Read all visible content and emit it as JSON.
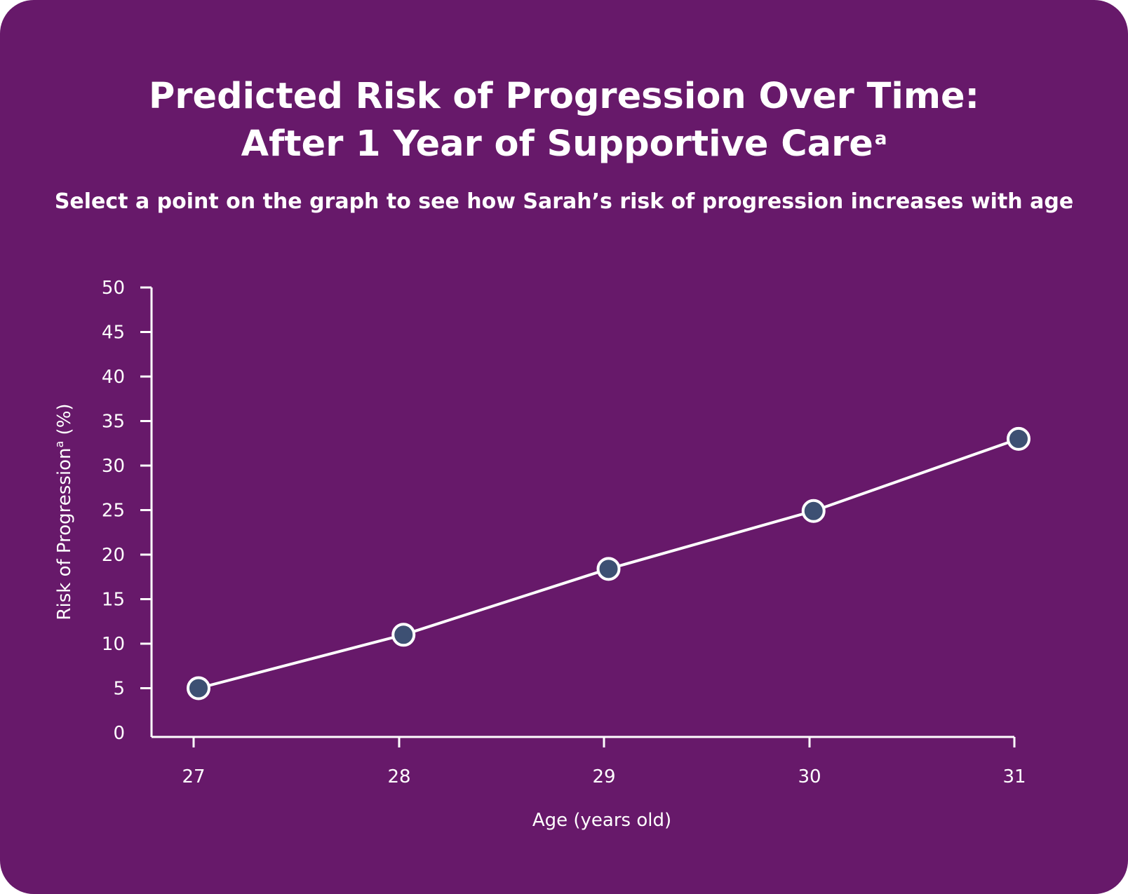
{
  "header": {
    "title_line1": "Predicted Risk of Progression Over Time:",
    "title_line2": "After 1 Year of Supportive Care",
    "title_superscript": "a",
    "subtitle": "Select a point on the graph to see how Sarah’s risk of progression increases with age"
  },
  "colors": {
    "background": "#67196a",
    "line": "#ffffff",
    "point_fill": "#3d5073",
    "point_stroke": "#ffffff",
    "text": "#ffffff"
  },
  "chart_data": {
    "type": "line",
    "title": "Predicted Risk of Progression Over Time: After 1 Year of Supportive Care",
    "subtitle": "Select a point on the graph to see how Sarah’s risk of progression increases with age",
    "xlabel": "Age (years old)",
    "ylabel_main": "Risk of Progression",
    "ylabel_superscript": "a",
    "ylabel_suffix": " (%)",
    "x": [
      27,
      28,
      29,
      30,
      31
    ],
    "x_tick_labels": [
      "27",
      "28",
      "29",
      "30",
      "31"
    ],
    "y_ticks": [
      0,
      5,
      10,
      15,
      20,
      25,
      30,
      35,
      40,
      45,
      50
    ],
    "y_tick_labels": [
      "0",
      "5",
      "10",
      "15",
      "20",
      "25",
      "30",
      "35",
      "40",
      "45",
      "50"
    ],
    "ylim": [
      0,
      50
    ],
    "xlim": [
      27,
      31
    ],
    "grid": false,
    "series": [
      {
        "values": [
          5,
          11,
          18.4,
          24.9,
          33
        ]
      }
    ]
  }
}
